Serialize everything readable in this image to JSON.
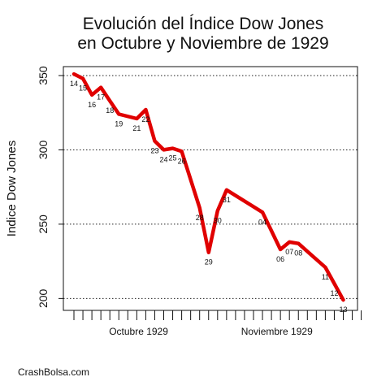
{
  "chart_data": {
    "type": "line",
    "title": [
      "Evolución del Índice Dow Jones",
      "en Octubre y Noviembre de 1929"
    ],
    "xlabel": "",
    "ylabel": "Indice Dow Jones",
    "ylim": [
      192,
      356
    ],
    "yticks": [
      200,
      250,
      300,
      350
    ],
    "grid": "horizontal dotted at y ticks",
    "line_color": "#e00000",
    "month_labels": [
      "Octubre 1929",
      "Noviembre 1929"
    ],
    "x_tick_count": 33,
    "points": [
      {
        "x": 0,
        "y": 351,
        "label": "14"
      },
      {
        "x": 1,
        "y": 348,
        "label": "15"
      },
      {
        "x": 2,
        "y": 337,
        "label": "16"
      },
      {
        "x": 3,
        "y": 342,
        "label": "17"
      },
      {
        "x": 4,
        "y": 333,
        "label": "18"
      },
      {
        "x": 5,
        "y": 324,
        "label": "19"
      },
      {
        "x": 7,
        "y": 321,
        "label": "21"
      },
      {
        "x": 8,
        "y": 327,
        "label": "22"
      },
      {
        "x": 9,
        "y": 306,
        "label": "23"
      },
      {
        "x": 10,
        "y": 300,
        "label": "24"
      },
      {
        "x": 11,
        "y": 301,
        "label": "25"
      },
      {
        "x": 12,
        "y": 299,
        "label": "26"
      },
      {
        "x": 14,
        "y": 261,
        "label": "28"
      },
      {
        "x": 15,
        "y": 231,
        "label": "29"
      },
      {
        "x": 16,
        "y": 259,
        "label": "30"
      },
      {
        "x": 17,
        "y": 273,
        "label": "31"
      },
      {
        "x": 21,
        "y": 258,
        "label": "04"
      },
      {
        "x": 23,
        "y": 233,
        "label": "06"
      },
      {
        "x": 24,
        "y": 238,
        "label": "07"
      },
      {
        "x": 25,
        "y": 237,
        "label": "08"
      },
      {
        "x": 28,
        "y": 221,
        "label": "11"
      },
      {
        "x": 29,
        "y": 210,
        "label": "12"
      },
      {
        "x": 30,
        "y": 199,
        "label": "13"
      }
    ]
  },
  "footer": {
    "source": "CrashBolsa.com"
  }
}
